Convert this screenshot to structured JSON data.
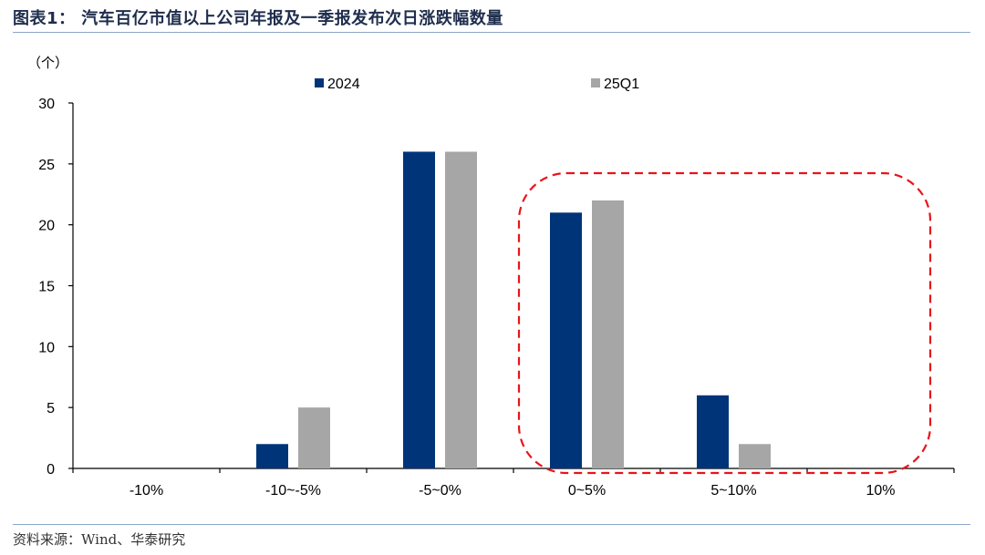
{
  "title": "图表1：  汽车百亿市值以上公司年报及一季报发布次日涨跌幅数量",
  "source": "资料来源：Wind、华泰研究",
  "colors": {
    "series_2024": "#003478",
    "series_25q1": "#a6a6a6",
    "highlight": "#e8141b",
    "rule": "#8aa6c8"
  },
  "chart_data": {
    "type": "bar",
    "unit_label": "（个）",
    "categories": [
      "-10%",
      "-10~-5%",
      "-5~0%",
      "0~5%",
      "5~10%",
      "10%"
    ],
    "series": [
      {
        "name": "2024",
        "values": [
          0,
          2,
          26,
          21,
          6,
          0
        ]
      },
      {
        "name": "25Q1",
        "values": [
          0,
          5,
          26,
          22,
          2,
          0
        ]
      }
    ],
    "ylim": [
      0,
      30
    ],
    "yticks": [
      0,
      5,
      10,
      15,
      20,
      25,
      30
    ],
    "legend_position": "top",
    "grid": false,
    "annotation": {
      "shape": "dashed-rounded-rectangle",
      "covers_categories": [
        "0~5%",
        "5~10%",
        "10%"
      ]
    }
  }
}
